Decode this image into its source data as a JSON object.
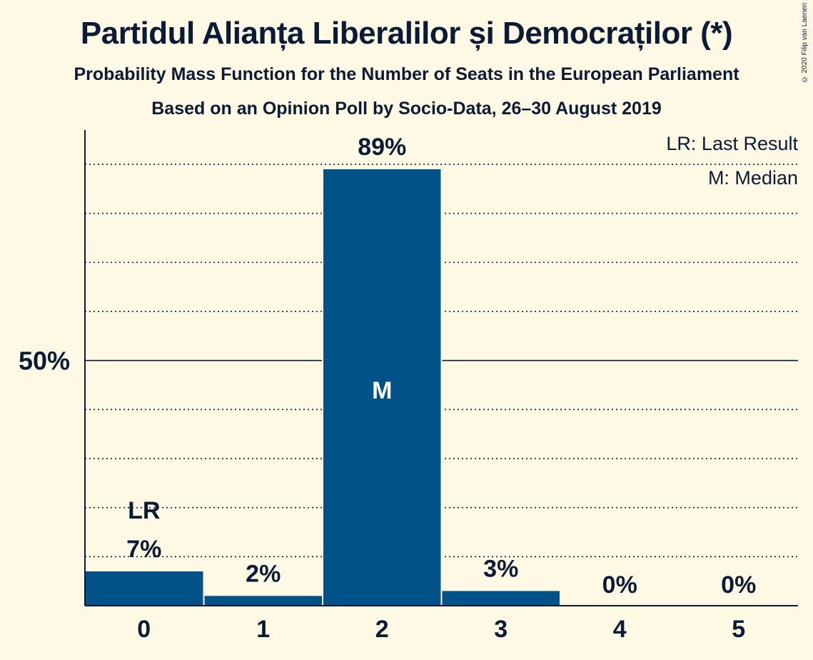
{
  "title": "Partidul Alianța Liberalilor și Democraților (*)",
  "subtitle": "Probability Mass Function for the Number of Seats in the European Parliament",
  "subtitle2": "Based on an Opinion Poll by Socio-Data, 26–30 August 2019",
  "copyright": "© 2020 Filip van Laenen",
  "legend": {
    "last_result": "LR: Last Result",
    "median": "M: Median"
  },
  "colors": {
    "background": "#fef9e5",
    "bar": "#005288",
    "text": "#0b1b36"
  },
  "chart_data": {
    "type": "bar",
    "categories": [
      "0",
      "1",
      "2",
      "3",
      "4",
      "5"
    ],
    "values": [
      7,
      2,
      89,
      3,
      0,
      0
    ],
    "value_labels": [
      "7%",
      "2%",
      "89%",
      "3%",
      "0%",
      "0%"
    ],
    "ylim": [
      0,
      97
    ],
    "yticks": [
      {
        "value": 50,
        "label": "50%"
      }
    ],
    "minor_gridlines": [
      10,
      20,
      30,
      40,
      60,
      70,
      80,
      90
    ],
    "annotations": [
      {
        "category": "0",
        "text": "LR",
        "position": "above-label"
      },
      {
        "category": "2",
        "text": "M",
        "position": "inside-bar"
      }
    ],
    "legend_position": "top-right"
  }
}
